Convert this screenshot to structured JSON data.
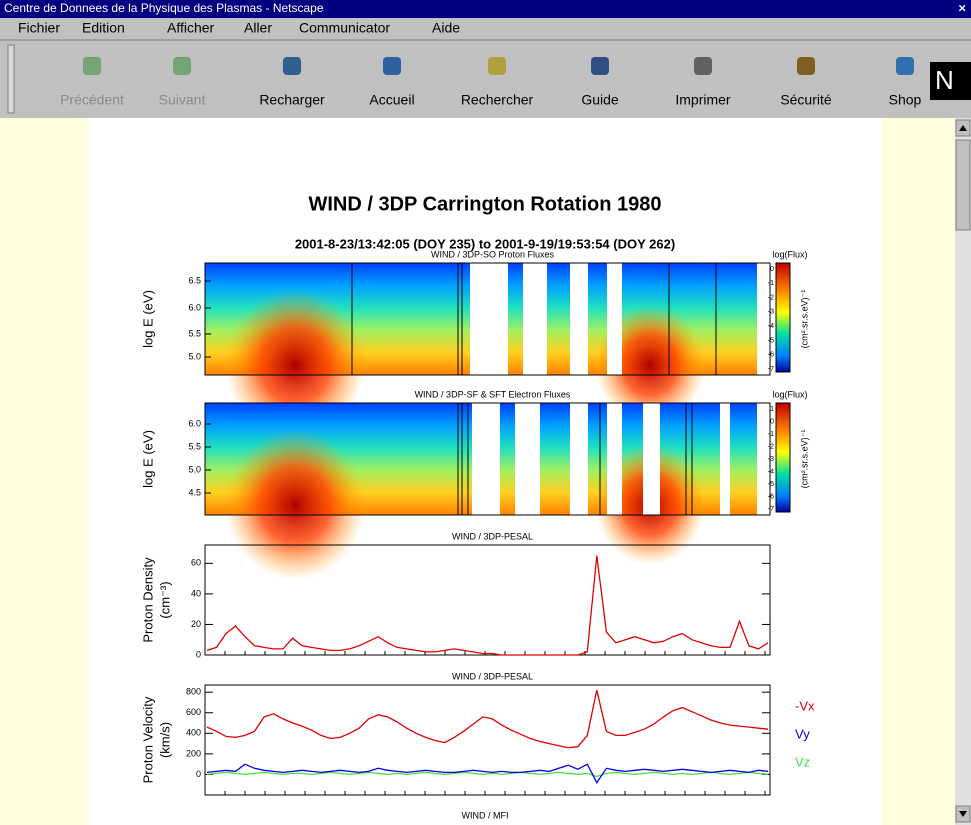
{
  "window": {
    "title": "Centre de Donnees de la Physique des Plasmas - Netscape",
    "close": "×"
  },
  "menu": [
    "Fichier",
    "Edition",
    "Afficher",
    "Aller",
    "Communicator",
    "Aide"
  ],
  "toolbar": [
    "Précédent",
    "Suivant",
    "Recharger",
    "Accueil",
    "Rechercher",
    "Guide",
    "Imprimer",
    "Sécurité",
    "Shop"
  ],
  "page": {
    "title": "WIND / 3DP Carrington Rotation 1980",
    "subtitle": "2001-8-23/13:42:05 (DOY 235) to 2001-9-19/19:53:54 (DOY 262)"
  },
  "spectrograms": [
    {
      "title": "WIND / 3DP-SO Proton Fluxes",
      "ylabel": "log E (eV)",
      "yticks": [
        "6.5",
        "6.0",
        "5.5",
        "5.0"
      ],
      "colorbar_title": "log(Flux)",
      "colorbar_ticks": [
        "0",
        "-1",
        "-2",
        "-3",
        "-4",
        "-5",
        "-6",
        "-7"
      ],
      "colorbar_unit": "(cm².sr.s.eV)⁻¹"
    },
    {
      "title": "WIND / 3DP-SF & SFT Electron Fluxes",
      "ylabel": "log E (eV)",
      "yticks": [
        "6.0",
        "5.5",
        "5.0",
        "4.5"
      ],
      "colorbar_title": "log(Flux)",
      "colorbar_ticks": [
        "1",
        "0",
        "-1",
        "-2",
        "-3",
        "-4",
        "-5",
        "-6",
        "-7"
      ],
      "colorbar_unit": "(cm².sr.s.eV)⁻¹"
    }
  ],
  "density": {
    "title": "WIND / 3DP-PESAL",
    "ylabel": [
      "Proton Density",
      "(cm⁻³)"
    ],
    "ylim": [
      0,
      72
    ],
    "yticks": [
      0,
      20,
      40,
      60
    ],
    "color": "#e00000",
    "values": [
      3,
      5,
      14,
      19,
      12,
      6,
      5,
      4,
      4,
      11,
      6,
      5,
      4,
      3,
      3,
      4,
      6,
      9,
      12,
      8,
      5,
      4,
      3,
      2,
      2,
      3,
      4,
      3,
      2,
      1,
      1,
      0,
      0,
      0,
      0,
      0,
      0,
      0,
      0,
      0,
      2,
      65,
      15,
      8,
      10,
      12,
      10,
      8,
      9,
      12,
      14,
      10,
      8,
      6,
      5,
      5,
      22,
      6,
      4,
      8
    ]
  },
  "velocity": {
    "title": "WIND / 3DP-PESAL",
    "ylabel": [
      "Proton Velocity",
      "(km/s)"
    ],
    "ylim": [
      -200,
      870
    ],
    "yticks": [
      0,
      200,
      400,
      600,
      800
    ],
    "series": [
      {
        "name": "-Vx",
        "color": "#e00000",
        "values": [
          460,
          420,
          370,
          360,
          380,
          420,
          560,
          590,
          540,
          500,
          470,
          430,
          380,
          350,
          360,
          400,
          450,
          540,
          580,
          560,
          510,
          450,
          400,
          360,
          330,
          310,
          360,
          420,
          490,
          560,
          540,
          480,
          430,
          390,
          350,
          320,
          300,
          280,
          260,
          270,
          380,
          820,
          420,
          380,
          380,
          410,
          440,
          490,
          560,
          620,
          650,
          610,
          570,
          530,
          500,
          480,
          470,
          460,
          450,
          440
        ]
      },
      {
        "name": "Vy",
        "color": "#0000e0",
        "values": [
          20,
          30,
          40,
          30,
          100,
          60,
          40,
          30,
          20,
          30,
          40,
          30,
          20,
          30,
          40,
          30,
          20,
          30,
          60,
          40,
          30,
          20,
          30,
          40,
          30,
          20,
          20,
          30,
          40,
          30,
          20,
          30,
          20,
          20,
          30,
          40,
          30,
          60,
          90,
          50,
          100,
          -80,
          60,
          40,
          30,
          40,
          50,
          40,
          30,
          40,
          50,
          40,
          30,
          20,
          30,
          40,
          30,
          20,
          40,
          30
        ]
      },
      {
        "name": "Vz",
        "color": "#40e040",
        "values": [
          0,
          10,
          20,
          10,
          0,
          10,
          20,
          10,
          0,
          10,
          10,
          0,
          10,
          20,
          10,
          0,
          10,
          20,
          10,
          0,
          10,
          0,
          10,
          20,
          10,
          0,
          10,
          20,
          10,
          0,
          10,
          0,
          10,
          20,
          10,
          0,
          10,
          20,
          10,
          0,
          10,
          -20,
          10,
          20,
          10,
          0,
          10,
          20,
          10,
          0,
          10,
          0,
          10,
          20,
          10,
          0,
          10,
          20,
          10,
          0
        ]
      }
    ]
  },
  "next_title": "WIND / MFI"
}
